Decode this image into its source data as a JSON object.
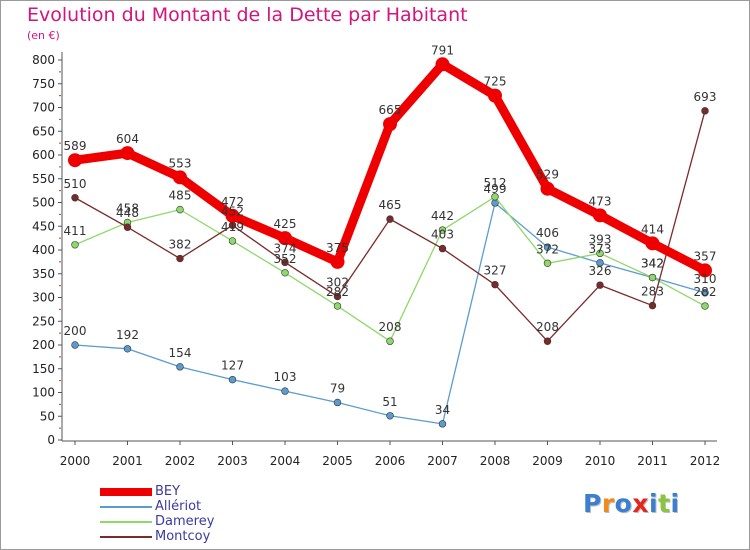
{
  "title": "Evolution du Montant de la Dette par Habitant",
  "unit_label": "(en €)",
  "logo": {
    "text": "Proxiti",
    "letter_colors": [
      "#3a7fd0",
      "#f08a1a",
      "#3a7fd0",
      "#e8251c",
      "#3a7fd0",
      "#8bc53f",
      "#3a7fd0"
    ]
  },
  "chart_data": {
    "type": "line",
    "x": [
      "2000",
      "2001",
      "2002",
      "2003",
      "2004",
      "2005",
      "2006",
      "2007",
      "2008",
      "2009",
      "2010",
      "2011",
      "2012"
    ],
    "ylim": [
      0,
      800
    ],
    "yticks": [
      0,
      50,
      100,
      150,
      200,
      250,
      300,
      350,
      400,
      450,
      500,
      550,
      600,
      650,
      700,
      750,
      800
    ],
    "grid": false,
    "legend_position": "bottom-left",
    "series": [
      {
        "name": "BEY",
        "color": "#ee0000",
        "values": [
          589,
          604,
          553,
          472,
          425,
          375,
          665,
          791,
          725,
          529,
          473,
          414,
          357
        ]
      },
      {
        "name": "Allériot",
        "color": "#5b9ccf",
        "values": [
          200,
          192,
          154,
          127,
          103,
          79,
          51,
          34,
          499,
          406,
          373,
          342,
          310
        ]
      },
      {
        "name": "Damerey",
        "color": "#8fd86a",
        "values": [
          411,
          458,
          485,
          419,
          352,
          282,
          208,
          442,
          512,
          372,
          393,
          342,
          282
        ]
      },
      {
        "name": "Montcoy",
        "color": "#7a2a2a",
        "values": [
          510,
          448,
          382,
          452,
          374,
          302,
          465,
          403,
          327,
          208,
          326,
          283,
          693
        ]
      }
    ]
  }
}
